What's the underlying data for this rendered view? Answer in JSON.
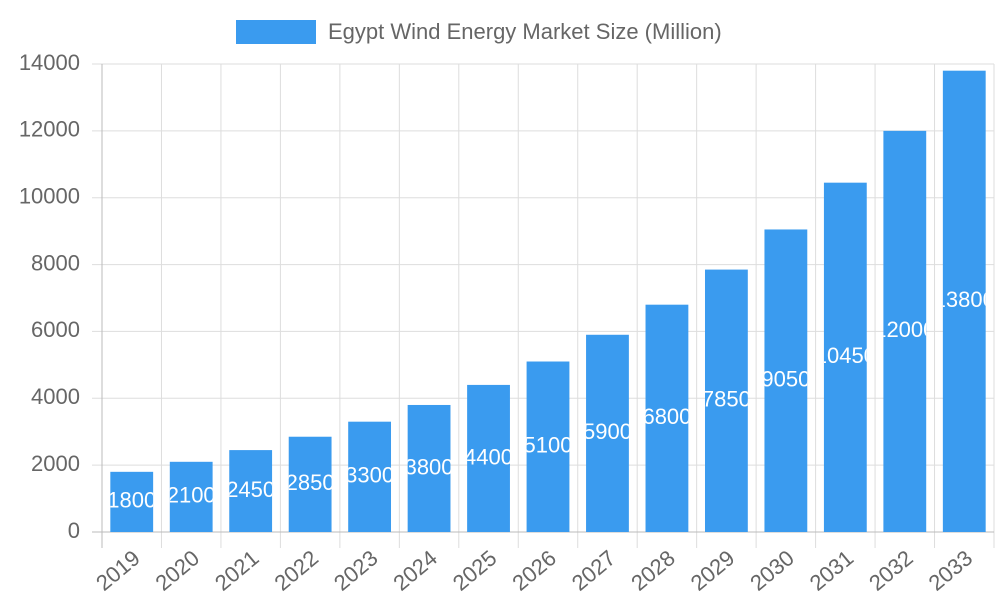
{
  "chart_data": {
    "type": "bar",
    "categories": [
      "2019",
      "2020",
      "2021",
      "2022",
      "2023",
      "2024",
      "2025",
      "2026",
      "2027",
      "2028",
      "2029",
      "2030",
      "2031",
      "2032",
      "2033"
    ],
    "series": [
      {
        "name": "Egypt Wind Energy Market Size (Million)",
        "color": "#3a9bef",
        "values": [
          1800,
          2100,
          2450,
          2850,
          3300,
          3800,
          4400,
          5100,
          5900,
          6800,
          7850,
          9050,
          10450,
          12000,
          13800
        ]
      }
    ],
    "ylim": [
      0,
      14000
    ],
    "yticks": [
      0,
      2000,
      4000,
      6000,
      8000,
      10000,
      12000,
      14000
    ],
    "grid": true,
    "legend": "top"
  }
}
